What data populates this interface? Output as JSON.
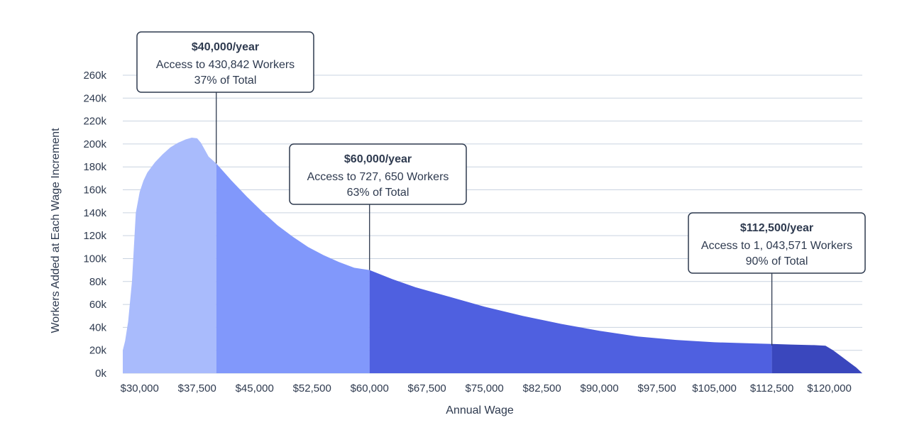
{
  "chart_data": {
    "type": "area",
    "xlabel": "Annual Wage",
    "ylabel": "Workers Added at Each Wage Increment",
    "xlim": [
      27800,
      124300
    ],
    "ylim": [
      0,
      260000
    ],
    "x_ticks": [
      "$30,000",
      "$37,500",
      "$45,000",
      "$52,500",
      "$60,000",
      "$67,500",
      "$75,000",
      "$82,500",
      "$90,000",
      "$97,500",
      "$105,000",
      "$112,500",
      "$120,000"
    ],
    "x_tick_values": [
      30000,
      37500,
      45000,
      52500,
      60000,
      67500,
      75000,
      82500,
      90000,
      97500,
      105000,
      112500,
      120000
    ],
    "y_ticks": [
      "0k",
      "20k",
      "40k",
      "60k",
      "80k",
      "100k",
      "120k",
      "140k",
      "160k",
      "180k",
      "200k",
      "220k",
      "240k",
      "260k"
    ],
    "y_tick_values": [
      0,
      20000,
      40000,
      60000,
      80000,
      100000,
      120000,
      140000,
      160000,
      180000,
      200000,
      220000,
      240000,
      260000
    ],
    "series": [
      {
        "x": [
          27800,
          28100,
          28500,
          29000,
          29500,
          30000,
          30500,
          31000,
          32000,
          33000,
          34000,
          35000,
          36000,
          36800,
          37500,
          38000,
          38500,
          39000,
          40000,
          42000,
          44000,
          46000,
          48000,
          50000,
          52000,
          54000,
          56000,
          58000,
          60000,
          63000,
          66000,
          70000,
          75000,
          80000,
          85000,
          90000,
          95000,
          100000,
          105000,
          110000,
          112500,
          115000,
          118000,
          119500,
          120500,
          121500,
          122500,
          123500,
          124300
        ],
        "y": [
          20000,
          28000,
          45000,
          80000,
          140000,
          158000,
          168000,
          175000,
          184000,
          191000,
          197000,
          201000,
          204000,
          205500,
          205000,
          201000,
          195000,
          189000,
          183000,
          168000,
          154000,
          141000,
          129000,
          119000,
          110000,
          103000,
          97000,
          92000,
          90000,
          82000,
          75000,
          67500,
          58000,
          50000,
          43000,
          37000,
          32000,
          29000,
          27000,
          26000,
          25500,
          25000,
          24500,
          24000,
          20000,
          15000,
          10000,
          5000,
          0
        ]
      }
    ],
    "segments": [
      {
        "from": 27800,
        "to": 40000,
        "color": "#a9bbfc"
      },
      {
        "from": 40000,
        "to": 60000,
        "color": "#8198fb"
      },
      {
        "from": 60000,
        "to": 112500,
        "color": "#4f60e0"
      },
      {
        "from": 112500,
        "to": 124300,
        "color": "#3a47bd"
      }
    ],
    "annotations": [
      {
        "x": 40000,
        "title": "$40,000/year",
        "line1": "Access to 430,842 Workers",
        "line2": "37% of Total"
      },
      {
        "x": 60000,
        "title": "$60,000/year",
        "line1": "Access to 727, 650 Workers",
        "line2": "63% of Total"
      },
      {
        "x": 112500,
        "title": "$112,500/year",
        "line1": "Access to 1, 043,571 Workers",
        "line2": "90% of Total"
      }
    ],
    "grid": true,
    "legend": "none"
  },
  "colors": {
    "text": "#2e3a4f",
    "grid": "#c9d3e0"
  }
}
